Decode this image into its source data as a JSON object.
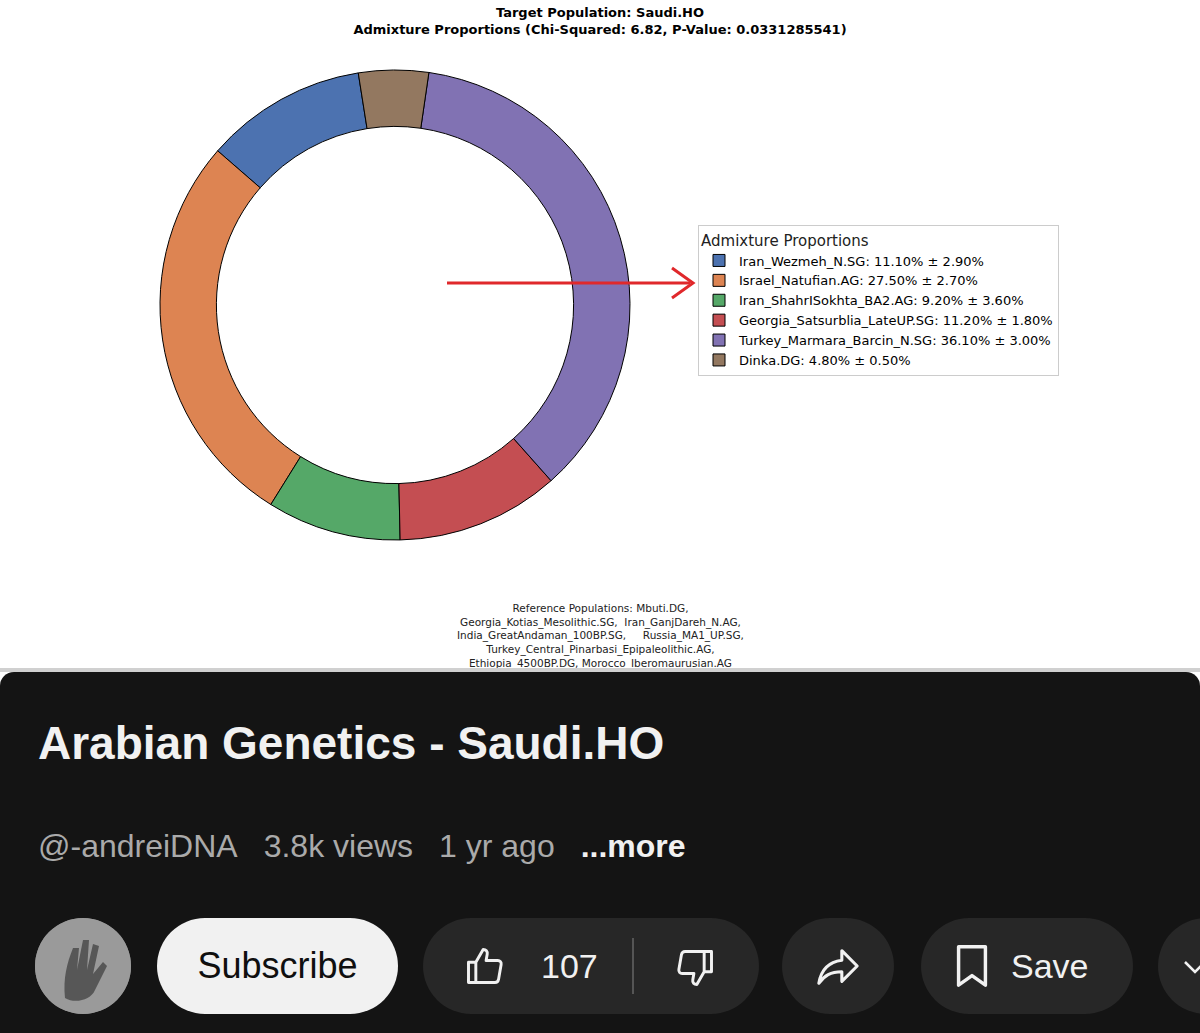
{
  "chart_data": {
    "type": "pie",
    "title": "Target Population: Saudi.HO",
    "subtitle": "Admixture Proportions (Chi-Squared: 6.82, P-Value: 0.0331285541)",
    "legend_title": "Admixture Proportions",
    "legend": "right",
    "categories": [
      "Iran_Wezmeh_N.SG: 11.10% ± 2.90%",
      "Israel_Natufian.AG: 27.50% ± 2.70%",
      "Iran_ShahrISokhta_BA2.AG: 9.20% ± 3.60%",
      "Georgia_Satsurblia_LateUP.SG: 11.20% ± 1.80%",
      "Turkey_Marmara_Barcin_N.SG: 36.10% ± 3.00%",
      "Dinka.DG: 4.80% ± 0.50%"
    ],
    "values": [
      11.1,
      27.5,
      9.2,
      11.2,
      36.1,
      4.8
    ],
    "colors": [
      "#4c72b0",
      "#dd8452",
      "#55a868",
      "#c44e52",
      "#8172b3",
      "#937860"
    ],
    "data_labels": false,
    "footnote": [
      "Reference Populations: Mbuti.DG,",
      "Georgia_Kotias_Mesolithic.SG,  Iran_GanjDareh_N.AG,",
      "India_GreatAndaman_100BP.SG,     Russia_MA1_UP.SG,",
      "Turkey_Central_Pinarbasi_Epipaleolithic.AG,",
      "Ethiopia_4500BP.DG, Morocco_Iberomaurusian.AG"
    ]
  },
  "video": {
    "title": "Arabian Genetics - Saudi.HO",
    "channel": "@-andreiDNA",
    "views": "3.8k views",
    "age": "1 yr ago",
    "more": "...more",
    "subscribe": "Subscribe",
    "likes": 107,
    "save": "Save"
  }
}
